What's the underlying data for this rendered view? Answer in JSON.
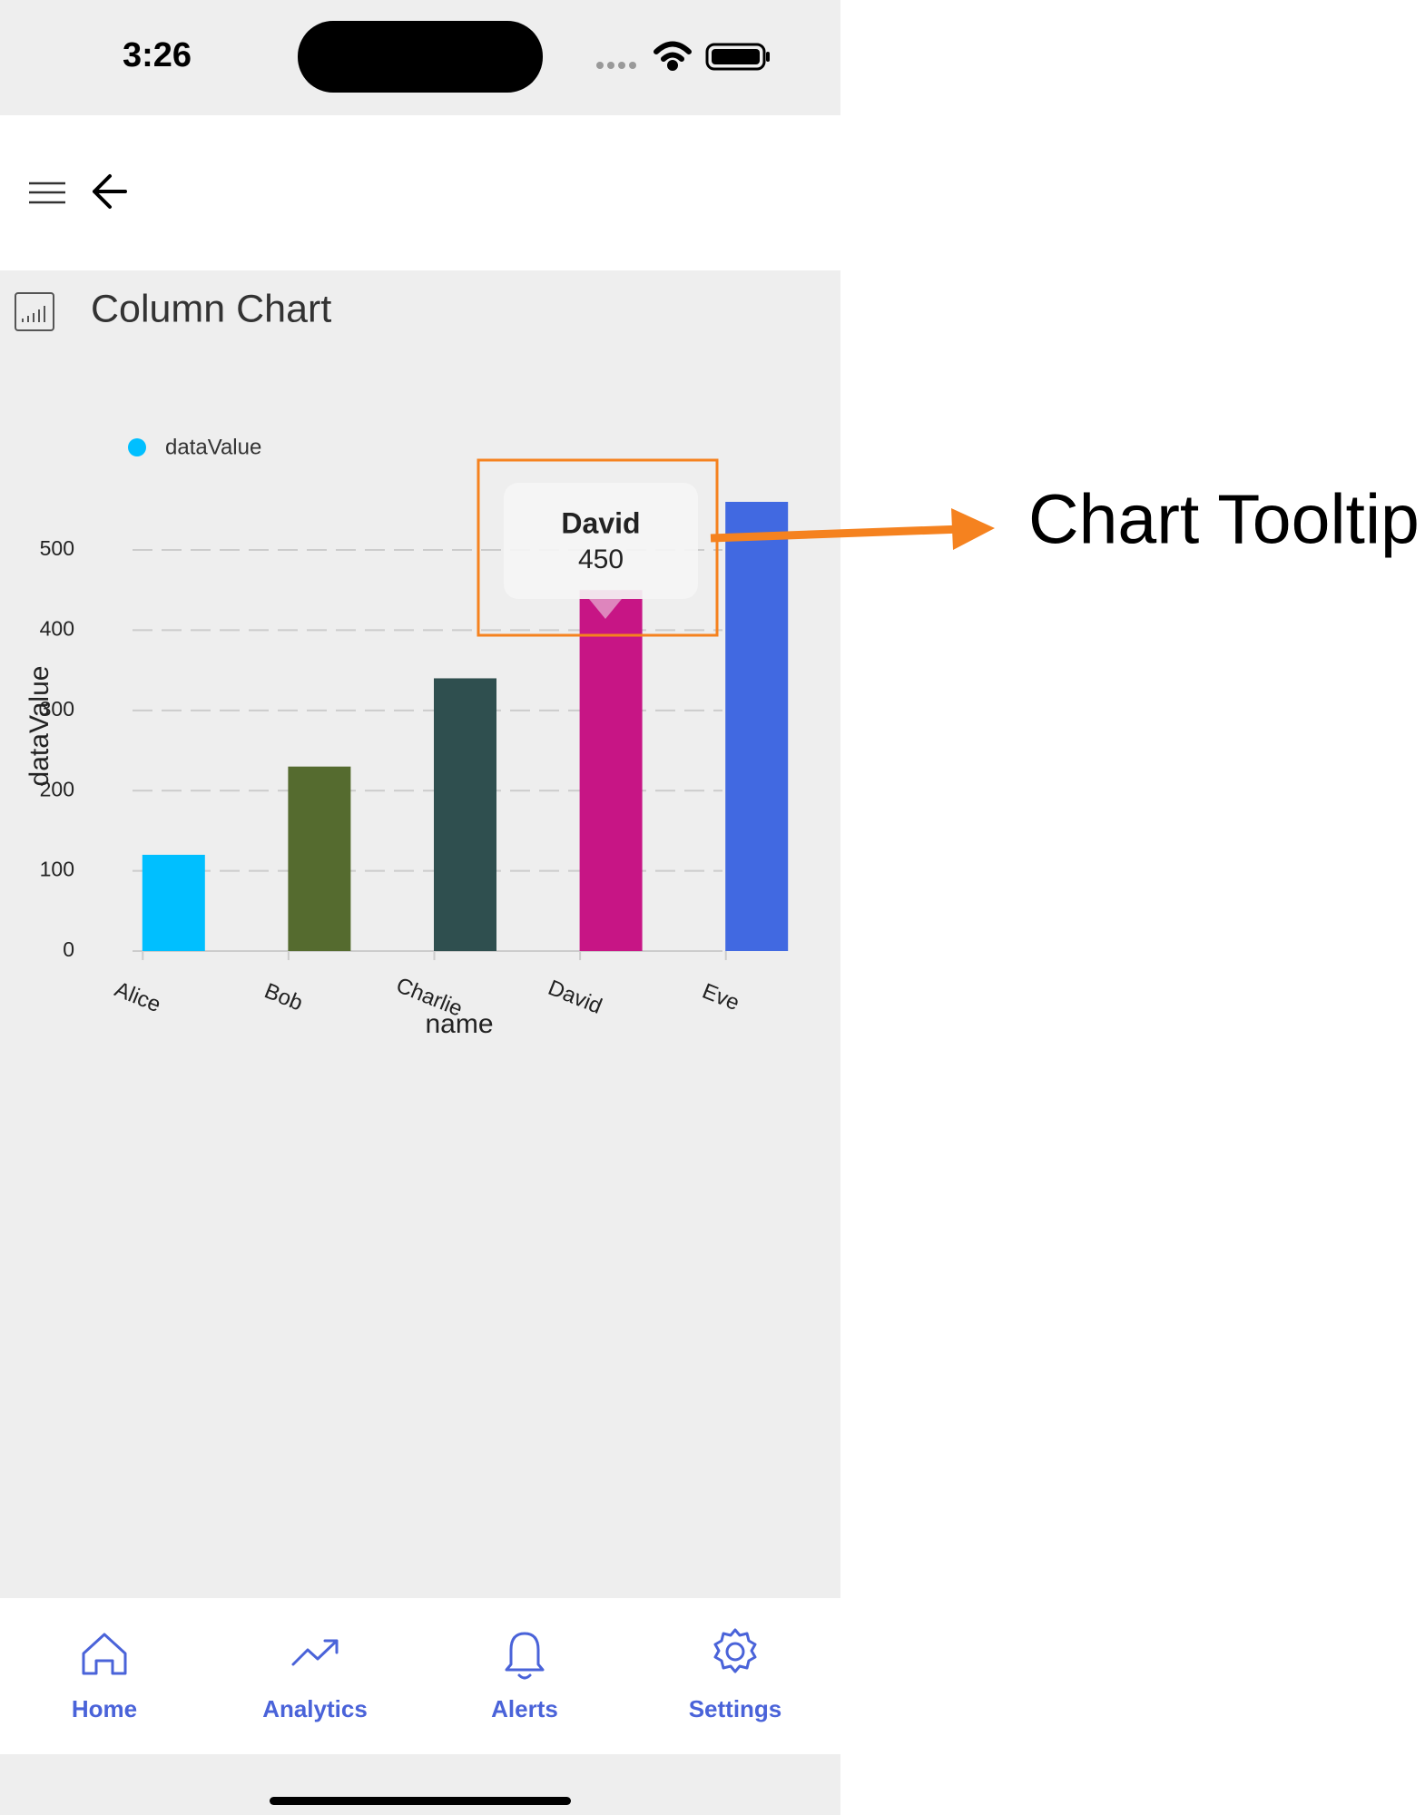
{
  "status_bar": {
    "time": "3:26"
  },
  "page": {
    "title": "Column Chart"
  },
  "chart_data": {
    "type": "bar",
    "categories": [
      "Alice",
      "Bob",
      "Charlie",
      "David",
      "Eve"
    ],
    "series": [
      {
        "name": "dataValue",
        "color": "#00bfff",
        "values": [
          120,
          230,
          340,
          450,
          560
        ]
      }
    ],
    "colors": [
      "#00bfff",
      "#556b2f",
      "#2f4f4f",
      "#c71585",
      "#4169e1"
    ],
    "x_label": "name",
    "y_label": "dataValue",
    "ylim": [
      0,
      560
    ],
    "yticks": [
      0,
      100,
      200,
      300,
      400,
      500
    ],
    "grid": true,
    "legend": "top-left"
  },
  "nav": {
    "items": [
      "Home",
      "Analytics",
      "Alerts",
      "Settings"
    ]
  },
  "annotation": "Chart Tooltip"
}
